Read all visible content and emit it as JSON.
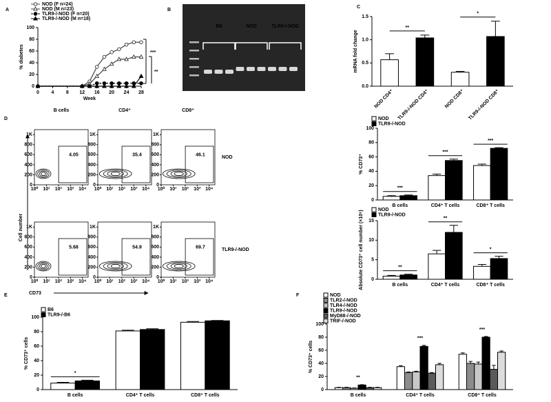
{
  "chart_data": [
    {
      "type": "line",
      "panel": "A",
      "xlabel": "Week",
      "ylabel": "% diabetes",
      "x": [
        0,
        12,
        14,
        16,
        18,
        20,
        22,
        24,
        26,
        28
      ],
      "xlim": [
        0,
        28
      ],
      "xticks": [
        0,
        4,
        8,
        12,
        16,
        20,
        24,
        28
      ],
      "ylim": [
        0,
        100
      ],
      "yticks": [
        0,
        20,
        40,
        60,
        80,
        100
      ],
      "series": [
        {
          "name": "NOD (F n=24)",
          "color": "#444444",
          "marker": "circle-open",
          "values": [
            0,
            0,
            8,
            33,
            50,
            58,
            63,
            71,
            75,
            75
          ]
        },
        {
          "name": "NOD (M n=23)",
          "color": "#444444",
          "marker": "triangle-open",
          "values": [
            0,
            0,
            4,
            17,
            29,
            38,
            46,
            46,
            50,
            50
          ]
        },
        {
          "name": "TLR9-/-NOD (F n=20)",
          "color": "#000000",
          "marker": "circle",
          "dash": true,
          "values": [
            0,
            0,
            0,
            5,
            5,
            5,
            5,
            5,
            5,
            5
          ]
        },
        {
          "name": "TLR9-/-NOD (M n=18)",
          "color": "#000000",
          "marker": "triangle",
          "values": [
            0,
            0,
            0,
            0,
            0,
            0,
            0,
            0,
            0,
            17
          ]
        }
      ],
      "annotations": [
        "***",
        "**"
      ]
    },
    {
      "type": "gel",
      "panel": "B",
      "lanes": [
        "B6",
        "NOD",
        "TLR9-/-NOD"
      ]
    },
    {
      "type": "bar",
      "panel": "C",
      "ylabel": "mRNA fold change",
      "categories": [
        "NOD CD4⁺",
        "TLR9-/-NOD CD4⁺",
        "NOD CD8⁺",
        "TLR9-/-NOD CD8⁺"
      ],
      "values": [
        0.57,
        1.04,
        0.3,
        1.07
      ],
      "errors": [
        0.13,
        0.06,
        0.02,
        0.33
      ],
      "colors": [
        "#ffffff",
        "#000000",
        "#ffffff",
        "#000000"
      ],
      "ylim": [
        0,
        1.5
      ],
      "yticks": [
        {
          "value": 0,
          "label": "0.0"
        },
        {
          "value": 0.5,
          "label": "0.5"
        },
        {
          "value": 1,
          "label": "1.0"
        },
        {
          "value": 1.5,
          "label": "1.5"
        }
      ],
      "annotations": [
        "**",
        "*"
      ]
    },
    {
      "type": "flow",
      "panel": "D",
      "columns": [
        "B cells",
        "CD4⁺",
        "CD8⁺"
      ],
      "rows": [
        "NOD",
        "TLR9-/-NOD"
      ],
      "gate_values": [
        [
          4.05,
          35.4,
          46.1
        ],
        [
          5.68,
          54.9,
          69.7
        ]
      ],
      "ylabel": "Cell number",
      "xlabel": "CD73",
      "ylim": [
        0,
        1100
      ],
      "yticks": [
        0,
        200,
        400,
        600,
        800,
        {
          "value": 1000,
          "label": "1K"
        }
      ],
      "xscale": "log",
      "xlim": [
        1,
        30000
      ],
      "xticks": [
        {
          "value": 1,
          "label": "10⁰"
        },
        {
          "value": 10,
          "label": "10¹"
        },
        {
          "value": 100,
          "label": "10²"
        },
        {
          "value": 1000,
          "label": "10³"
        },
        {
          "value": 10000,
          "label": "10⁴"
        }
      ]
    },
    {
      "type": "bar",
      "ylabel": "% CD73⁺",
      "categories": [
        "B cells",
        "CD4⁺ T cells",
        "CD8⁺ T cells"
      ],
      "series": [
        {
          "name": "NOD",
          "color": "#ffffff",
          "values": [
            5,
            34,
            48
          ],
          "errors": [
            1,
            2,
            2
          ]
        },
        {
          "name": "TLR9-/-NOD",
          "color": "#000000",
          "values": [
            6,
            55,
            72
          ],
          "errors": [
            1,
            2,
            1
          ]
        }
      ],
      "ylim": [
        0,
        100
      ],
      "yticks": [
        0,
        20,
        40,
        60,
        80,
        100
      ],
      "annotations": [
        "***",
        "***",
        "***"
      ]
    },
    {
      "type": "bar",
      "ylabel": "Absolute CD73⁺ cell number (×10⁵)",
      "categories": [
        "B cells",
        "CD4⁺ T cells",
        "CD8⁺ T cells"
      ],
      "series": [
        {
          "name": "NOD",
          "color": "#ffffff",
          "values": [
            0.8,
            6.5,
            3.3
          ],
          "errors": [
            0.2,
            0.9,
            0.5
          ]
        },
        {
          "name": "TLR9-/-NOD",
          "color": "#000000",
          "values": [
            1.1,
            12,
            5.3
          ],
          "errors": [
            0.2,
            1.8,
            0.6
          ]
        }
      ],
      "ylim": [
        0,
        15
      ],
      "yticks": [
        0,
        5,
        10,
        15
      ],
      "annotations": [
        "**",
        "**",
        "*"
      ]
    },
    {
      "type": "bar",
      "panel": "E",
      "ylabel": "% CD73⁺ cells",
      "categories": [
        "B cells",
        "CD4⁺ T cells",
        "CD8⁺ T cells"
      ],
      "series": [
        {
          "name": "B6",
          "color": "#ffffff",
          "values": [
            9,
            81,
            93
          ],
          "errors": [
            1,
            1,
            1
          ]
        },
        {
          "name": "TLR9-/-B6",
          "color": "#000000",
          "values": [
            12,
            83,
            95
          ],
          "errors": [
            1,
            1,
            0.5
          ]
        }
      ],
      "ylim": [
        0,
        100
      ],
      "yticks": [
        0,
        20,
        40,
        60,
        80,
        100
      ],
      "annotations": [
        "*",
        null,
        null
      ]
    },
    {
      "type": "bar",
      "panel": "F",
      "ylabel": "% CD73⁺ cells",
      "categories": [
        "B cells",
        "CD4⁺ T cells",
        "CD8⁺ T cells"
      ],
      "series": [
        {
          "name": "NOD",
          "color": "#ffffff",
          "values": [
            3,
            35,
            54
          ],
          "errors": [
            0.5,
            1.5,
            2
          ]
        },
        {
          "name": "TLR2-/-NOD",
          "color": "#8c8c8c",
          "values": [
            3,
            26,
            40
          ],
          "errors": [
            0.5,
            1,
            3
          ]
        },
        {
          "name": "TLR4-/-NOD",
          "color": "#c8c8c8",
          "values": [
            2,
            27,
            39
          ],
          "errors": [
            0.5,
            1,
            3
          ]
        },
        {
          "name": "TLR9-/-NOD",
          "color": "#000000",
          "values": [
            7,
            66,
            80
          ],
          "errors": [
            0.5,
            1.5,
            1
          ]
        },
        {
          "name": "MyD88-/-NOD",
          "color": "#5a5a5a",
          "values": [
            3,
            25,
            31
          ],
          "errors": [
            0.5,
            1,
            6
          ]
        },
        {
          "name": "TRIF-/-NOD",
          "color": "#dcdcdc",
          "values": [
            3,
            38,
            57
          ],
          "errors": [
            0.5,
            2,
            2
          ]
        }
      ],
      "ylim": [
        0,
        100
      ],
      "yticks": [
        0,
        20,
        40,
        60,
        80,
        100
      ],
      "annotations": [
        "**",
        "***",
        "***"
      ]
    }
  ]
}
